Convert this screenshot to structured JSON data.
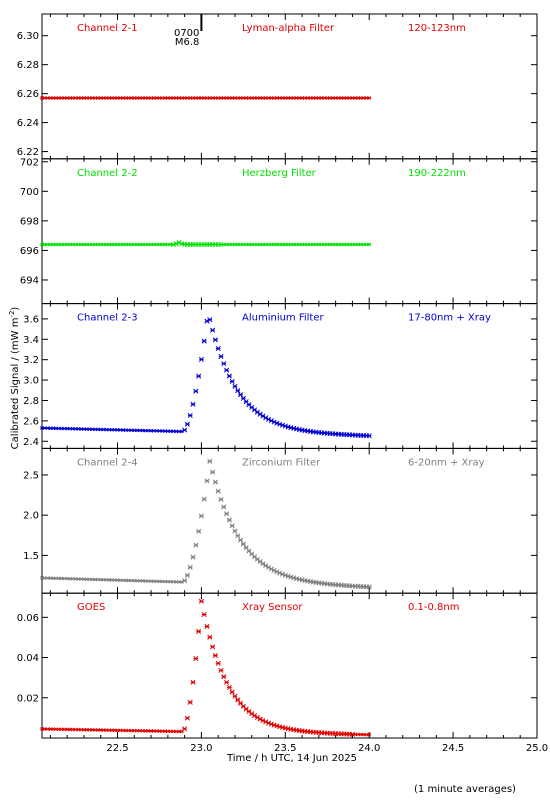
{
  "chart_data": {
    "type": "scatter",
    "xlabel": "Time / h UTC, 14 Jun 2025",
    "ylabel": "Calibrated Signal / (mW m",
    "ylabel_sup": "-2",
    "ylabel_end": ")",
    "footnote": "(1 minute averages)",
    "xlim": [
      22.05,
      25.0
    ],
    "x_ticks": [
      "22.5",
      "23.0",
      "23.5",
      "24.0",
      "24.5",
      "25.0"
    ],
    "x_tick_values": [
      22.5,
      23.0,
      23.5,
      24.0,
      24.5,
      25.0
    ],
    "x_data_range": [
      22.05,
      24.0
    ],
    "event_marker": {
      "x": 23.0,
      "time_label": "0700",
      "class_label": "M6.8"
    },
    "panels": [
      {
        "name": "Channel 2-1",
        "filter": "Lyman-alpha Filter",
        "band": "120-123nm",
        "color": "#e00000",
        "ylim": [
          6.215,
          6.315
        ],
        "y_ticks": [
          "6.22",
          "6.24",
          "6.26",
          "6.28",
          "6.30"
        ],
        "y_tick_values": [
          6.22,
          6.24,
          6.26,
          6.28,
          6.3
        ],
        "profile": {
          "base_start": 6.257,
          "base_end": 6.257,
          "peak": 6.257,
          "flare_start": 22.88,
          "peak_time": 23.03,
          "decay_end": 23.7
        }
      },
      {
        "name": "Channel 2-2",
        "filter": "Herzberg Filter",
        "band": "190-222nm",
        "color": "#00e000",
        "ylim": [
          692.4,
          702.2
        ],
        "y_ticks": [
          "694",
          "696",
          "698",
          "700",
          "702"
        ],
        "y_tick_values": [
          694,
          696,
          698,
          700,
          702
        ],
        "profile": {
          "base_start": 696.4,
          "base_end": 696.4,
          "peak": 696.55,
          "flare_start": 22.83,
          "peak_time": 22.87,
          "decay_end": 22.92
        }
      },
      {
        "name": "Channel 2-3",
        "filter": "Aluminium Filter",
        "band": "17-80nm + Xray",
        "color": "#0000d0",
        "ylim": [
          2.33,
          3.75
        ],
        "y_ticks": [
          "2.4",
          "2.6",
          "2.8",
          "3.0",
          "3.2",
          "3.4",
          "3.6"
        ],
        "y_tick_values": [
          2.4,
          2.6,
          2.8,
          3.0,
          3.2,
          3.4,
          3.6
        ],
        "profile": {
          "base_start": 2.53,
          "base_end": 2.45,
          "peak": 3.66,
          "flare_start": 22.89,
          "peak_time": 23.04,
          "decay_end": 23.8
        }
      },
      {
        "name": "Channel 2-4",
        "filter": "Zirconium Filter",
        "band": "6-20nm + Xray",
        "color": "#808080",
        "ylim": [
          1.03,
          2.83
        ],
        "y_ticks": [
          "1.5",
          "2.0",
          "2.5"
        ],
        "y_tick_values": [
          1.5,
          2.0,
          2.5
        ],
        "profile": {
          "base_start": 1.22,
          "base_end": 1.1,
          "peak": 2.67,
          "flare_start": 22.89,
          "peak_time": 23.05,
          "decay_end": 23.85
        }
      },
      {
        "name": "GOES",
        "filter": "Xray Sensor",
        "band": "0.1-0.8nm",
        "color": "#e00000",
        "ylim": [
          0.0,
          0.072
        ],
        "y_ticks": [
          "0.02",
          "0.04",
          "0.06"
        ],
        "y_tick_values": [
          0.02,
          0.04,
          0.06
        ],
        "profile": {
          "base_start": 0.0045,
          "base_end": 0.0015,
          "peak": 0.068,
          "flare_start": 22.89,
          "peak_time": 23.0,
          "decay_end": 23.7
        }
      }
    ]
  }
}
